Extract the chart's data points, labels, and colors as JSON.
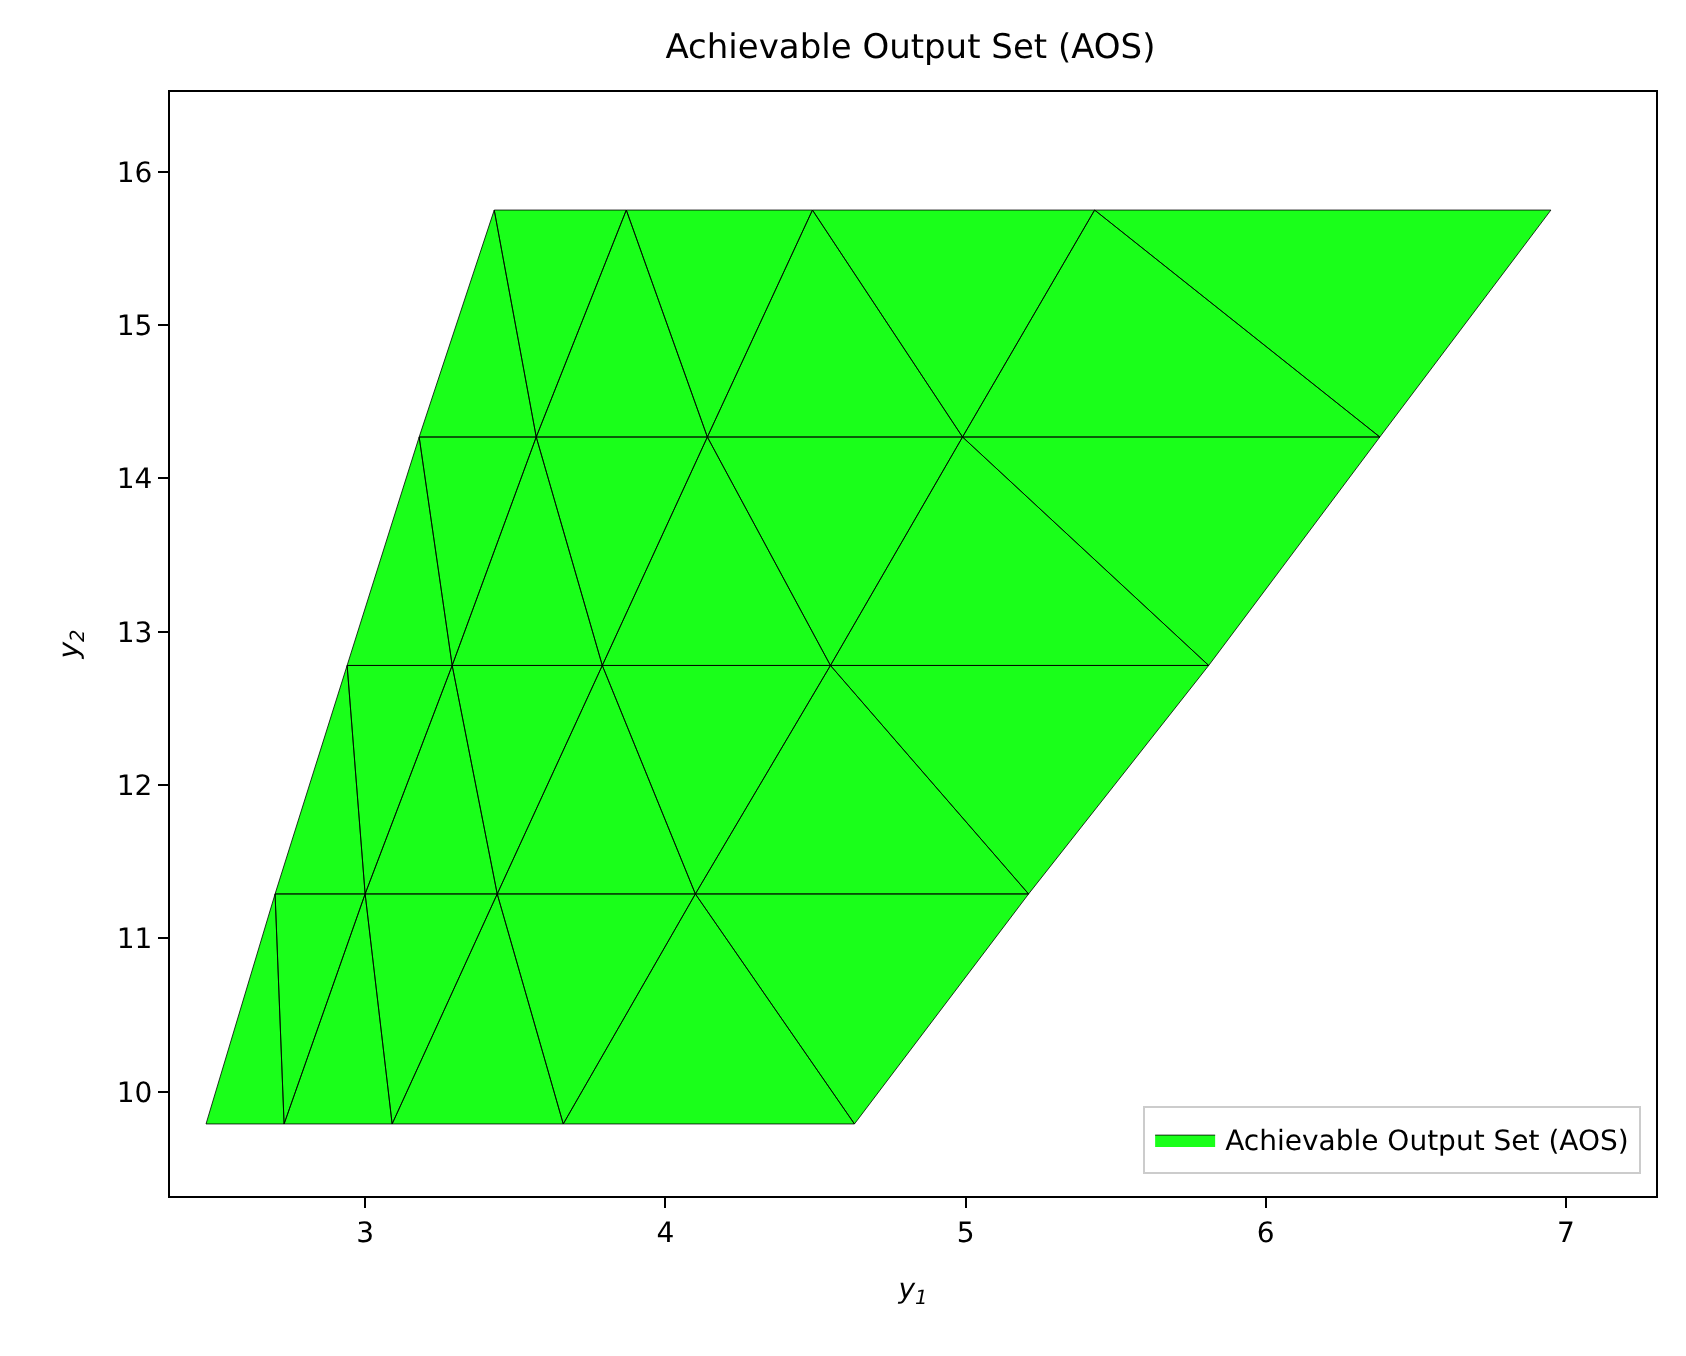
{
  "chart_data": {
    "type": "area",
    "title": "Achievable Output Set (AOS)",
    "xlabel": "y$_{1}$",
    "ylabel": "y$_{2}$",
    "xlim": [
      2.35,
      7.3
    ],
    "ylim": [
      9.32,
      16.52
    ],
    "xticks": [
      3,
      4,
      5,
      6,
      7
    ],
    "yticks": [
      10,
      11,
      12,
      13,
      14,
      15,
      16
    ],
    "legend": "bottom right",
    "series": [
      {
        "name": "Achievable Output Set (AOS)",
        "color": "#1aff1a",
        "x": [
          2.47,
          2.73,
          2.7,
          2.47,
          null,
          2.73,
          3.0,
          2.7,
          2.73,
          null,
          2.73,
          3.09,
          3.0,
          2.73,
          null,
          3.09,
          3.44,
          3.0,
          3.09,
          null,
          3.09,
          3.66,
          3.44,
          3.09,
          null,
          3.66,
          4.1,
          3.44,
          3.66,
          null,
          3.66,
          4.63,
          4.1,
          3.66,
          null,
          4.63,
          5.21,
          4.1,
          4.63,
          null,
          2.7,
          3.0,
          2.94,
          2.7,
          null,
          3.0,
          3.29,
          2.94,
          3.0,
          null,
          3.0,
          3.44,
          3.29,
          3.0,
          null,
          3.44,
          3.79,
          3.29,
          3.44,
          null,
          3.44,
          4.1,
          3.79,
          3.44,
          null,
          4.1,
          4.55,
          3.79,
          4.1,
          null,
          4.1,
          5.21,
          4.55,
          4.1,
          null,
          5.21,
          5.81,
          4.55,
          5.21,
          null,
          2.94,
          3.29,
          3.18,
          2.94,
          null,
          3.29,
          3.57,
          3.18,
          3.29,
          null,
          3.29,
          3.79,
          3.57,
          3.29,
          null,
          3.79,
          4.14,
          3.57,
          3.79,
          null,
          3.79,
          4.55,
          4.14,
          3.79,
          null,
          4.55,
          4.99,
          4.14,
          4.55,
          null,
          4.55,
          5.81,
          4.99,
          4.55,
          null,
          5.81,
          6.38,
          4.99,
          5.81,
          null,
          3.18,
          3.57,
          3.43,
          3.18,
          null,
          3.57,
          3.87,
          3.43,
          3.57,
          null,
          3.57,
          4.14,
          3.87,
          3.57,
          null,
          4.14,
          4.49,
          3.87,
          4.14,
          null,
          4.14,
          4.99,
          4.49,
          4.14,
          null,
          4.99,
          5.43,
          4.49,
          4.99,
          null,
          4.99,
          6.38,
          5.43,
          4.99,
          null,
          6.38,
          6.95,
          5.43,
          6.38
        ],
        "values": [
          9.79,
          9.79,
          11.29,
          9.79,
          null,
          9.79,
          11.29,
          11.29,
          9.79,
          null,
          9.79,
          9.79,
          11.29,
          9.79,
          null,
          9.79,
          11.29,
          11.29,
          9.79,
          null,
          9.79,
          9.79,
          11.29,
          9.79,
          null,
          9.79,
          11.29,
          11.29,
          9.79,
          null,
          9.79,
          9.79,
          11.29,
          9.79,
          null,
          9.79,
          11.29,
          11.29,
          9.79,
          null,
          11.29,
          11.29,
          12.78,
          11.29,
          null,
          11.29,
          12.78,
          12.78,
          11.29,
          null,
          11.29,
          11.29,
          12.78,
          11.29,
          null,
          11.29,
          12.78,
          12.78,
          11.29,
          null,
          11.29,
          11.29,
          12.78,
          11.29,
          null,
          11.29,
          12.78,
          12.78,
          11.29,
          null,
          11.29,
          11.29,
          12.78,
          11.29,
          null,
          11.29,
          12.78,
          12.78,
          11.29,
          null,
          12.78,
          12.78,
          14.27,
          12.78,
          null,
          12.78,
          14.27,
          14.27,
          12.78,
          null,
          12.78,
          12.78,
          14.27,
          12.78,
          null,
          12.78,
          14.27,
          14.27,
          12.78,
          null,
          12.78,
          12.78,
          14.27,
          12.78,
          null,
          12.78,
          14.27,
          14.27,
          12.78,
          null,
          12.78,
          12.78,
          14.27,
          12.78,
          null,
          12.78,
          14.27,
          14.27,
          12.78,
          null,
          14.27,
          14.27,
          15.75,
          14.27,
          null,
          14.27,
          15.75,
          15.75,
          14.27,
          null,
          14.27,
          14.27,
          15.75,
          14.27,
          null,
          14.27,
          15.75,
          15.75,
          14.27,
          null,
          14.27,
          14.27,
          15.75,
          14.27,
          null,
          14.27,
          15.75,
          15.75,
          14.27,
          null,
          14.27,
          14.27,
          15.75,
          14.27,
          null,
          14.27,
          15.75,
          15.75,
          14.27
        ]
      }
    ]
  }
}
